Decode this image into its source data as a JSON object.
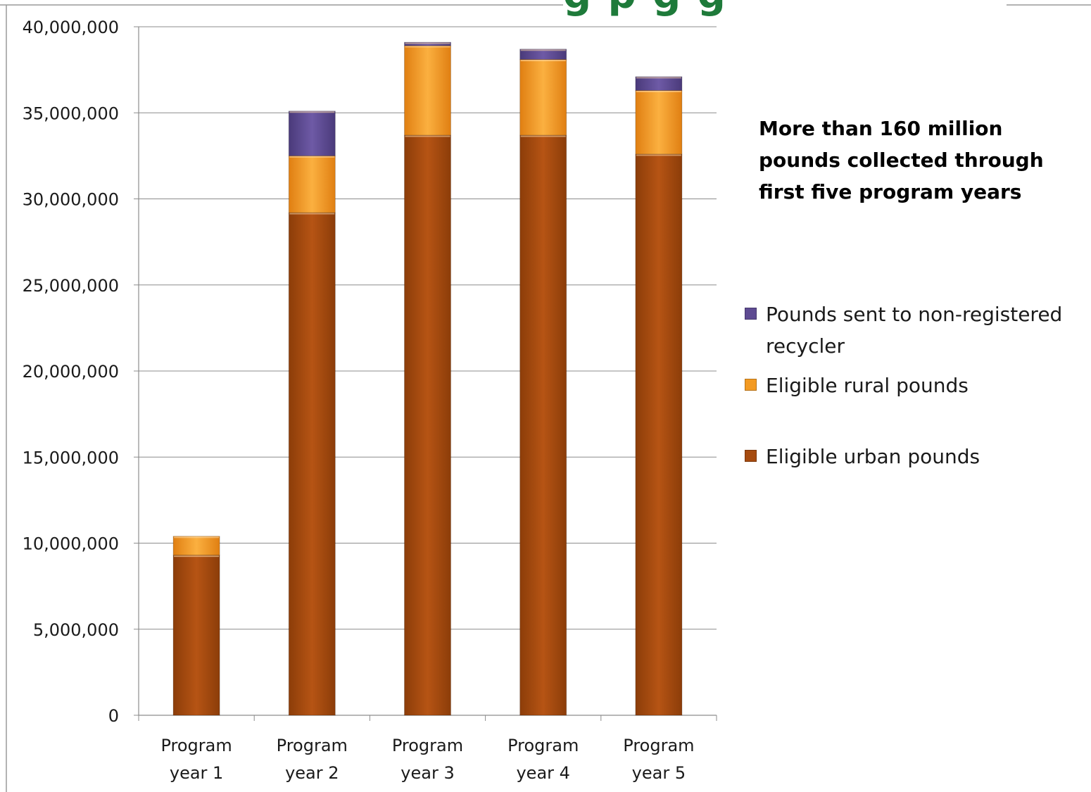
{
  "chart_data": {
    "type": "bar",
    "stacked": true,
    "categories": [
      [
        "Program",
        "year 1"
      ],
      [
        "Program",
        "year 2"
      ],
      [
        "Program",
        "year 3"
      ],
      [
        "Program",
        "year 4"
      ],
      [
        "Program",
        "year 5"
      ]
    ],
    "series": [
      {
        "name": "Eligible urban pounds",
        "color": "#A64B0F",
        "values": [
          9300000,
          29200000,
          33700000,
          33700000,
          32600000
        ]
      },
      {
        "name": "Eligible rural pounds",
        "color": "#F39A22",
        "values": [
          1100000,
          3300000,
          5200000,
          4400000,
          3700000
        ]
      },
      {
        "name": "Pounds sent to non-registered recycler",
        "color": "#5E4B92",
        "values": [
          0,
          2600000,
          200000,
          600000,
          800000
        ]
      }
    ],
    "legend_order": [
      2,
      1,
      0
    ],
    "legend_labels": [
      "Pounds sent to non-registered recycler",
      "Eligible rural pounds",
      "Eligible urban pounds"
    ],
    "y_ticks": [
      "0",
      "5,000,000",
      "10,000,000",
      "15,000,000",
      "20,000,000",
      "25,000,000",
      "30,000,000",
      "35,000,000",
      "40,000,000"
    ],
    "ylim": [
      0,
      40000000
    ],
    "grid": true,
    "legend_position": "right",
    "annotation": "More than 160 million pounds collected through first five program years"
  },
  "title_fragment": "g p  g   g"
}
